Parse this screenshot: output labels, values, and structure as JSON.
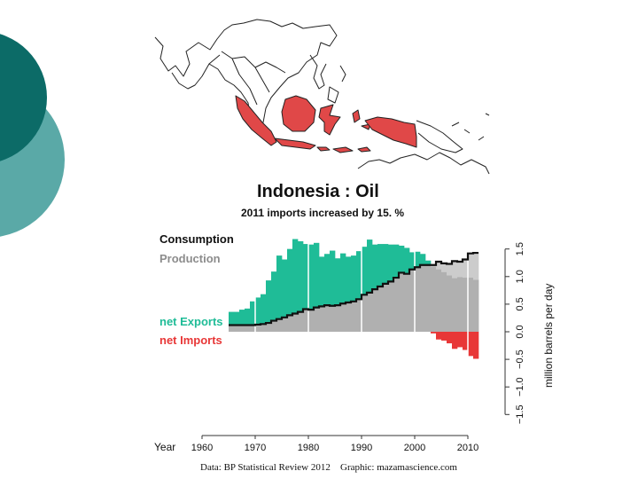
{
  "slide": {
    "colors": {
      "dark": "#0c6b67",
      "light": "#5aa9a7"
    }
  },
  "map": {
    "highlight_color": "#e04848",
    "outline_color": "#222222"
  },
  "chart_data": {
    "type": "area",
    "title": "Indonesia :  Oil",
    "subtitle": "2011 imports increased by 15. %",
    "legend": [
      {
        "label": "Consumption",
        "color": "#111111"
      },
      {
        "label": "Production",
        "color": "#8c8c8c"
      },
      {
        "label": "net Exports",
        "color": "#1fbc97"
      },
      {
        "label": "net Imports",
        "color": "#e83737"
      }
    ],
    "xlabel": "Year",
    "ylabel": "million barrels per day",
    "xlim": [
      1960,
      2012
    ],
    "ylim": [
      -1.5,
      1.5
    ],
    "x_ticks": [
      "1960",
      "1970",
      "1980",
      "1990",
      "2000",
      "2010"
    ],
    "y_ticks": [
      "−1.5",
      "−1.0",
      "−0.5",
      "0.0",
      "0.5",
      "1.0",
      "1.5"
    ],
    "y_tick_values": [
      -1.5,
      -1.0,
      -0.5,
      0.0,
      0.5,
      1.0,
      1.5
    ],
    "years": [
      1965,
      1966,
      1967,
      1968,
      1969,
      1970,
      1971,
      1972,
      1973,
      1974,
      1975,
      1976,
      1977,
      1978,
      1979,
      1980,
      1981,
      1982,
      1983,
      1984,
      1985,
      1986,
      1987,
      1988,
      1989,
      1990,
      1991,
      1992,
      1993,
      1994,
      1995,
      1996,
      1997,
      1998,
      1999,
      2000,
      2001,
      2002,
      2003,
      2004,
      2005,
      2006,
      2007,
      2008,
      2009,
      2010,
      2011
    ],
    "production": [
      0.36,
      0.36,
      0.4,
      0.42,
      0.55,
      0.62,
      0.68,
      0.93,
      1.09,
      1.38,
      1.31,
      1.5,
      1.68,
      1.64,
      1.59,
      1.58,
      1.61,
      1.36,
      1.41,
      1.47,
      1.33,
      1.42,
      1.36,
      1.38,
      1.46,
      1.54,
      1.67,
      1.58,
      1.59,
      1.59,
      1.58,
      1.58,
      1.56,
      1.52,
      1.44,
      1.45,
      1.41,
      1.29,
      1.18,
      1.13,
      1.08,
      1.02,
      0.97,
      0.99,
      0.98,
      0.98,
      0.94
    ],
    "consumption": [
      0.12,
      0.12,
      0.12,
      0.12,
      0.12,
      0.13,
      0.14,
      0.16,
      0.2,
      0.23,
      0.26,
      0.3,
      0.33,
      0.36,
      0.41,
      0.4,
      0.44,
      0.46,
      0.48,
      0.47,
      0.48,
      0.51,
      0.53,
      0.55,
      0.59,
      0.67,
      0.71,
      0.77,
      0.82,
      0.87,
      0.91,
      0.98,
      1.07,
      1.05,
      1.13,
      1.17,
      1.21,
      1.21,
      1.21,
      1.27,
      1.24,
      1.23,
      1.28,
      1.27,
      1.31,
      1.42,
      1.43
    ],
    "colors": {
      "consumption_fill": "#cccccc",
      "production_fill": "#b0b0b0",
      "exports": "#1fbc97",
      "imports": "#e83737",
      "line": "#111111",
      "gridline": "#ffffff"
    },
    "source": "Data: BP Statistical Review 2012",
    "credit": "Graphic: mazamascience.com"
  }
}
